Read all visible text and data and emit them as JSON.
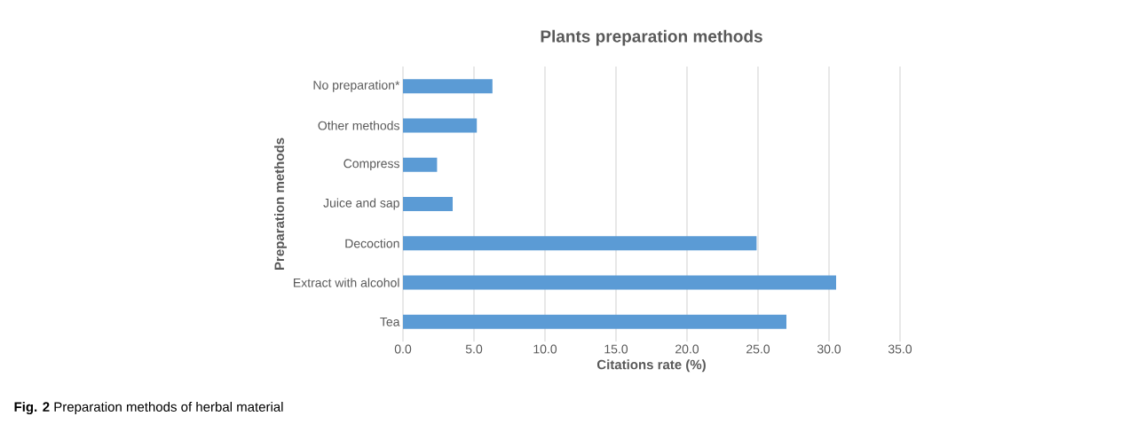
{
  "chart_data": {
    "type": "bar",
    "orientation": "horizontal",
    "title": "Plants preparation methods",
    "xlabel": "Citations rate (%)",
    "ylabel": "Preparation methods",
    "categories": [
      "No preparation*",
      "Other methods",
      "Compress",
      "Juice and sap",
      "Decoction",
      "Extract with alcohol",
      "Tea"
    ],
    "values": [
      6.3,
      5.2,
      2.4,
      3.5,
      24.9,
      30.5,
      27.0
    ],
    "color": "#5b9bd5",
    "xlim": [
      0,
      35
    ],
    "xticks": [
      {
        "value": 0,
        "label": "0.0"
      },
      {
        "value": 5,
        "label": "5.0"
      },
      {
        "value": 10,
        "label": "10.0"
      },
      {
        "value": 15,
        "label": "15.0"
      },
      {
        "value": 20,
        "label": "20.0"
      },
      {
        "value": 25,
        "label": "25.0"
      },
      {
        "value": 30,
        "label": "30.0"
      },
      {
        "value": 35,
        "label": "35.0"
      }
    ],
    "grid": "x",
    "annotations": [
      "**Fig. 2** Preparation methods of herbal material"
    ]
  }
}
